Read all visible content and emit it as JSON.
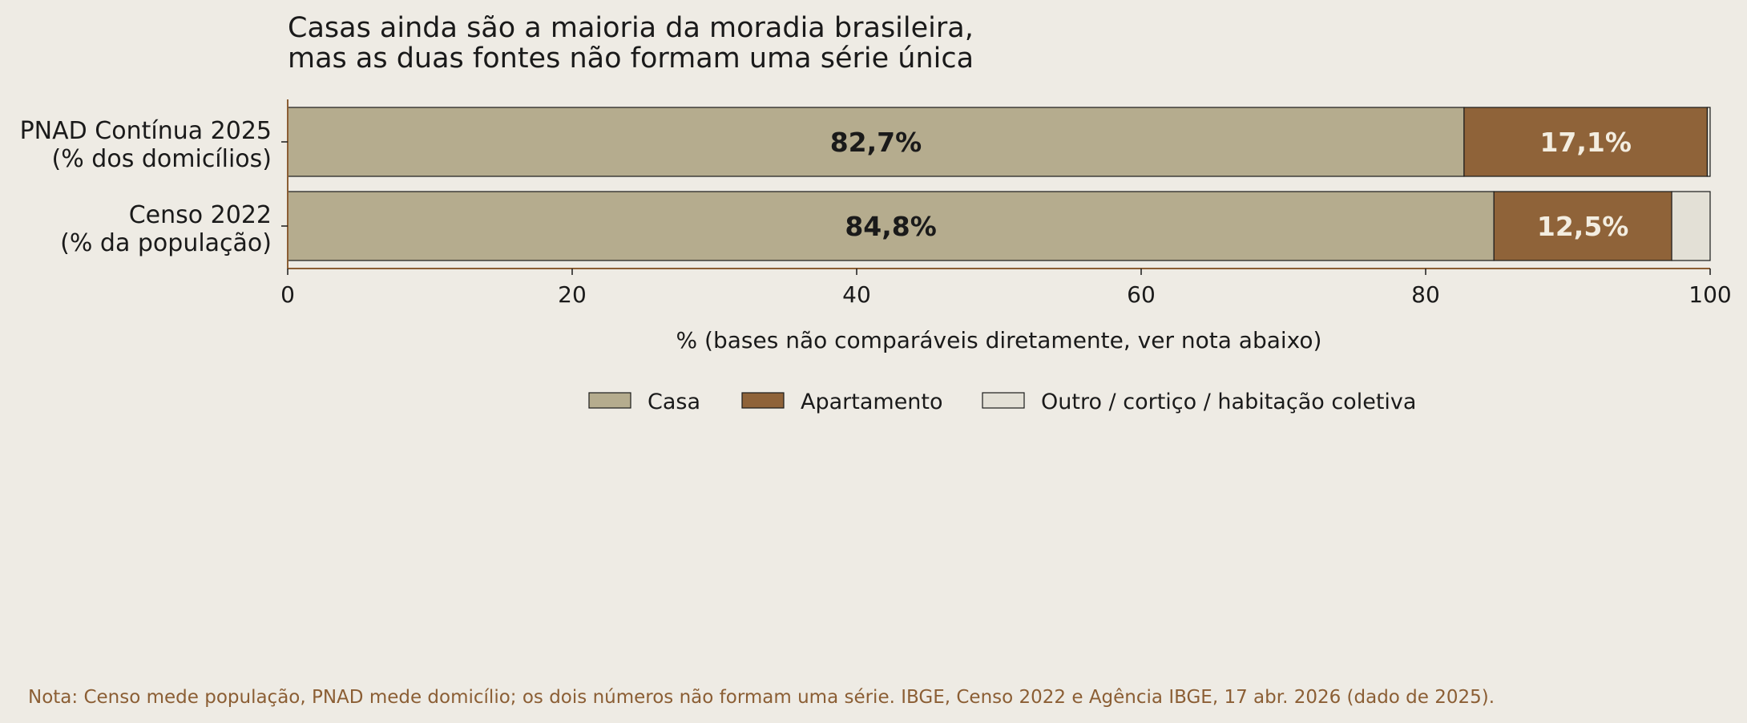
{
  "chart_data": {
    "type": "bar",
    "orientation": "horizontal",
    "stacked": true,
    "title_lines": [
      "Casas ainda são a maioria da moradia brasileira,",
      "mas as duas fontes não formam uma série única"
    ],
    "categories": [
      [
        "PNAD Contínua 2025",
        "(% dos domicílios)"
      ],
      [
        "Censo 2022",
        "(% da população)"
      ]
    ],
    "series": [
      {
        "name": "Casa",
        "color": "#b5ac8e",
        "values": [
          82.7,
          84.8
        ],
        "labels": [
          "82,7%",
          "84,8%"
        ],
        "label_color": "#1a1a1a"
      },
      {
        "name": "Apartamento",
        "color": "#8f6339",
        "values": [
          17.1,
          12.5
        ],
        "labels": [
          "17,1%",
          "12,5%"
        ],
        "label_color": "#f3ede0"
      },
      {
        "name": "Outro / cortiço / habitação coletiva",
        "color": "#e3e0d6",
        "values": [
          0.2,
          2.7
        ],
        "labels": [
          "",
          ""
        ],
        "label_color": "#1a1a1a"
      }
    ],
    "xlim": [
      0,
      100
    ],
    "xticks": [
      "0",
      "20",
      "40",
      "60",
      "80",
      "100"
    ],
    "xlabel": "% (bases não comparáveis diretamente, ver nota abaixo)",
    "legend_position": "bottom-center",
    "grid": false
  },
  "note": "Nota: Censo mede população, PNAD mede domicílio; os dois números não formam uma série. IBGE, Censo 2022 e Agência IBGE, 17 abr. 2026 (dado de 2025).",
  "colors": {
    "background": "#eeebe4",
    "axis": "#8b5e34",
    "note": "#8b5e34"
  }
}
